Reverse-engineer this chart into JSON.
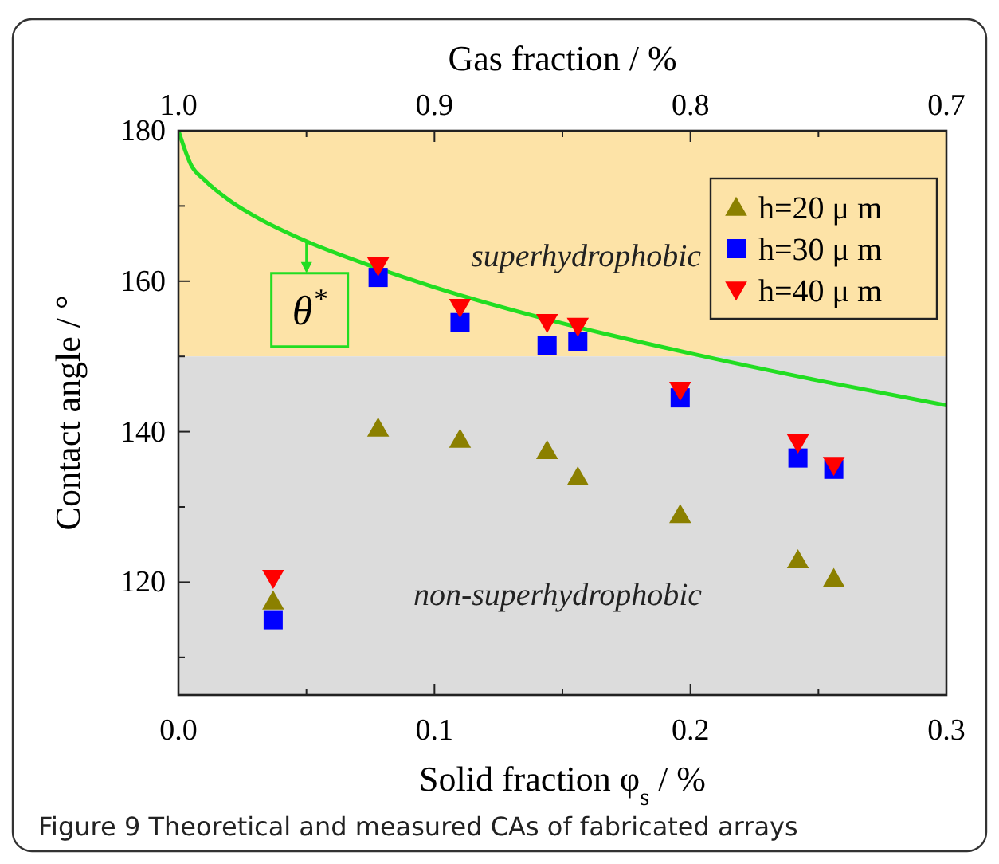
{
  "chart_data": {
    "type": "scatter",
    "xlabel": "Solid fraction φ$_{s}$ / %",
    "ylabel": "Contact angle / °",
    "x2label": "Gas fraction / %",
    "xlim": [
      0,
      0.3
    ],
    "xticks": [
      {
        "value": 0,
        "label": "0.0"
      },
      {
        "value": 0.05,
        "label": null
      },
      0.1,
      {
        "value": 0.15,
        "label": null
      },
      0.2,
      {
        "value": 0.25,
        "label": null
      },
      0.3
    ],
    "x2lim": [
      1,
      0.7
    ],
    "x2ticks": [
      {
        "value": 1,
        "label": "1.0"
      },
      {
        "value": 0.95,
        "label": null
      },
      0.9,
      {
        "value": 0.85,
        "label": null
      },
      0.8,
      {
        "value": 0.75,
        "label": null
      },
      0.7
    ],
    "ylim": [
      105,
      180
    ],
    "yticks": [
      {
        "value": 110,
        "label": null
      },
      120,
      {
        "value": 130,
        "label": null
      },
      140,
      {
        "value": 150,
        "label": null
      },
      160,
      {
        "value": 170,
        "label": null
      },
      180
    ],
    "grid": false,
    "legend": "top right",
    "bands": [
      {
        "axis": "y",
        "from": 150,
        "to": 180,
        "label": "superhydrophobic",
        "color": "#fde3a7"
      },
      {
        "axis": "y",
        "from": 105,
        "to": 150,
        "label": "non-superhydrophobic",
        "color": "#dcdcdc"
      }
    ],
    "series": [
      {
        "type": "line",
        "color": "#22dd22",
        "marker": "none",
        "line_style": "solid",
        "x": [
          0,
          0.005,
          0.01,
          0.02,
          0.03,
          0.05,
          0.078,
          0.1,
          0.15,
          0.2,
          0.25,
          0.3
        ],
        "values": [
          180,
          175.4,
          173.5,
          170.7,
          168.6,
          165.3,
          161.7,
          159.2,
          154.4,
          150.4,
          146.8,
          143.5
        ]
      },
      {
        "name": "h=20 μ m",
        "color": "#8b8000",
        "marker": "triangle",
        "x": [
          0.037,
          0.078,
          0.11,
          0.144,
          0.156,
          0.196,
          0.242,
          0.256
        ],
        "values": [
          117.5,
          140.5,
          139,
          137.5,
          134,
          129,
          123,
          120.5
        ]
      },
      {
        "name": "h=30 μ m",
        "color": "#0000ff",
        "marker": "square",
        "x": [
          0.037,
          0.078,
          0.11,
          0.144,
          0.156,
          0.196,
          0.242,
          0.256
        ],
        "values": [
          115,
          160.5,
          154.5,
          151.5,
          152,
          144.5,
          136.5,
          135
        ]
      },
      {
        "name": "h=40 μ m",
        "color": "#ff0000",
        "marker": "triangle-down",
        "x": [
          0.037,
          0.078,
          0.11,
          0.144,
          0.156,
          0.196,
          0.242,
          0.256
        ],
        "values": [
          120.5,
          162,
          156.5,
          154.5,
          154,
          145.5,
          138.5,
          135.5
        ]
      }
    ],
    "annotations": [
      {
        "text": "θ$^{*}$",
        "x": 0.05,
        "y": 165.3
      },
      "Figure 9  Theoretical and measured CAs of fabricated arrays"
    ]
  }
}
